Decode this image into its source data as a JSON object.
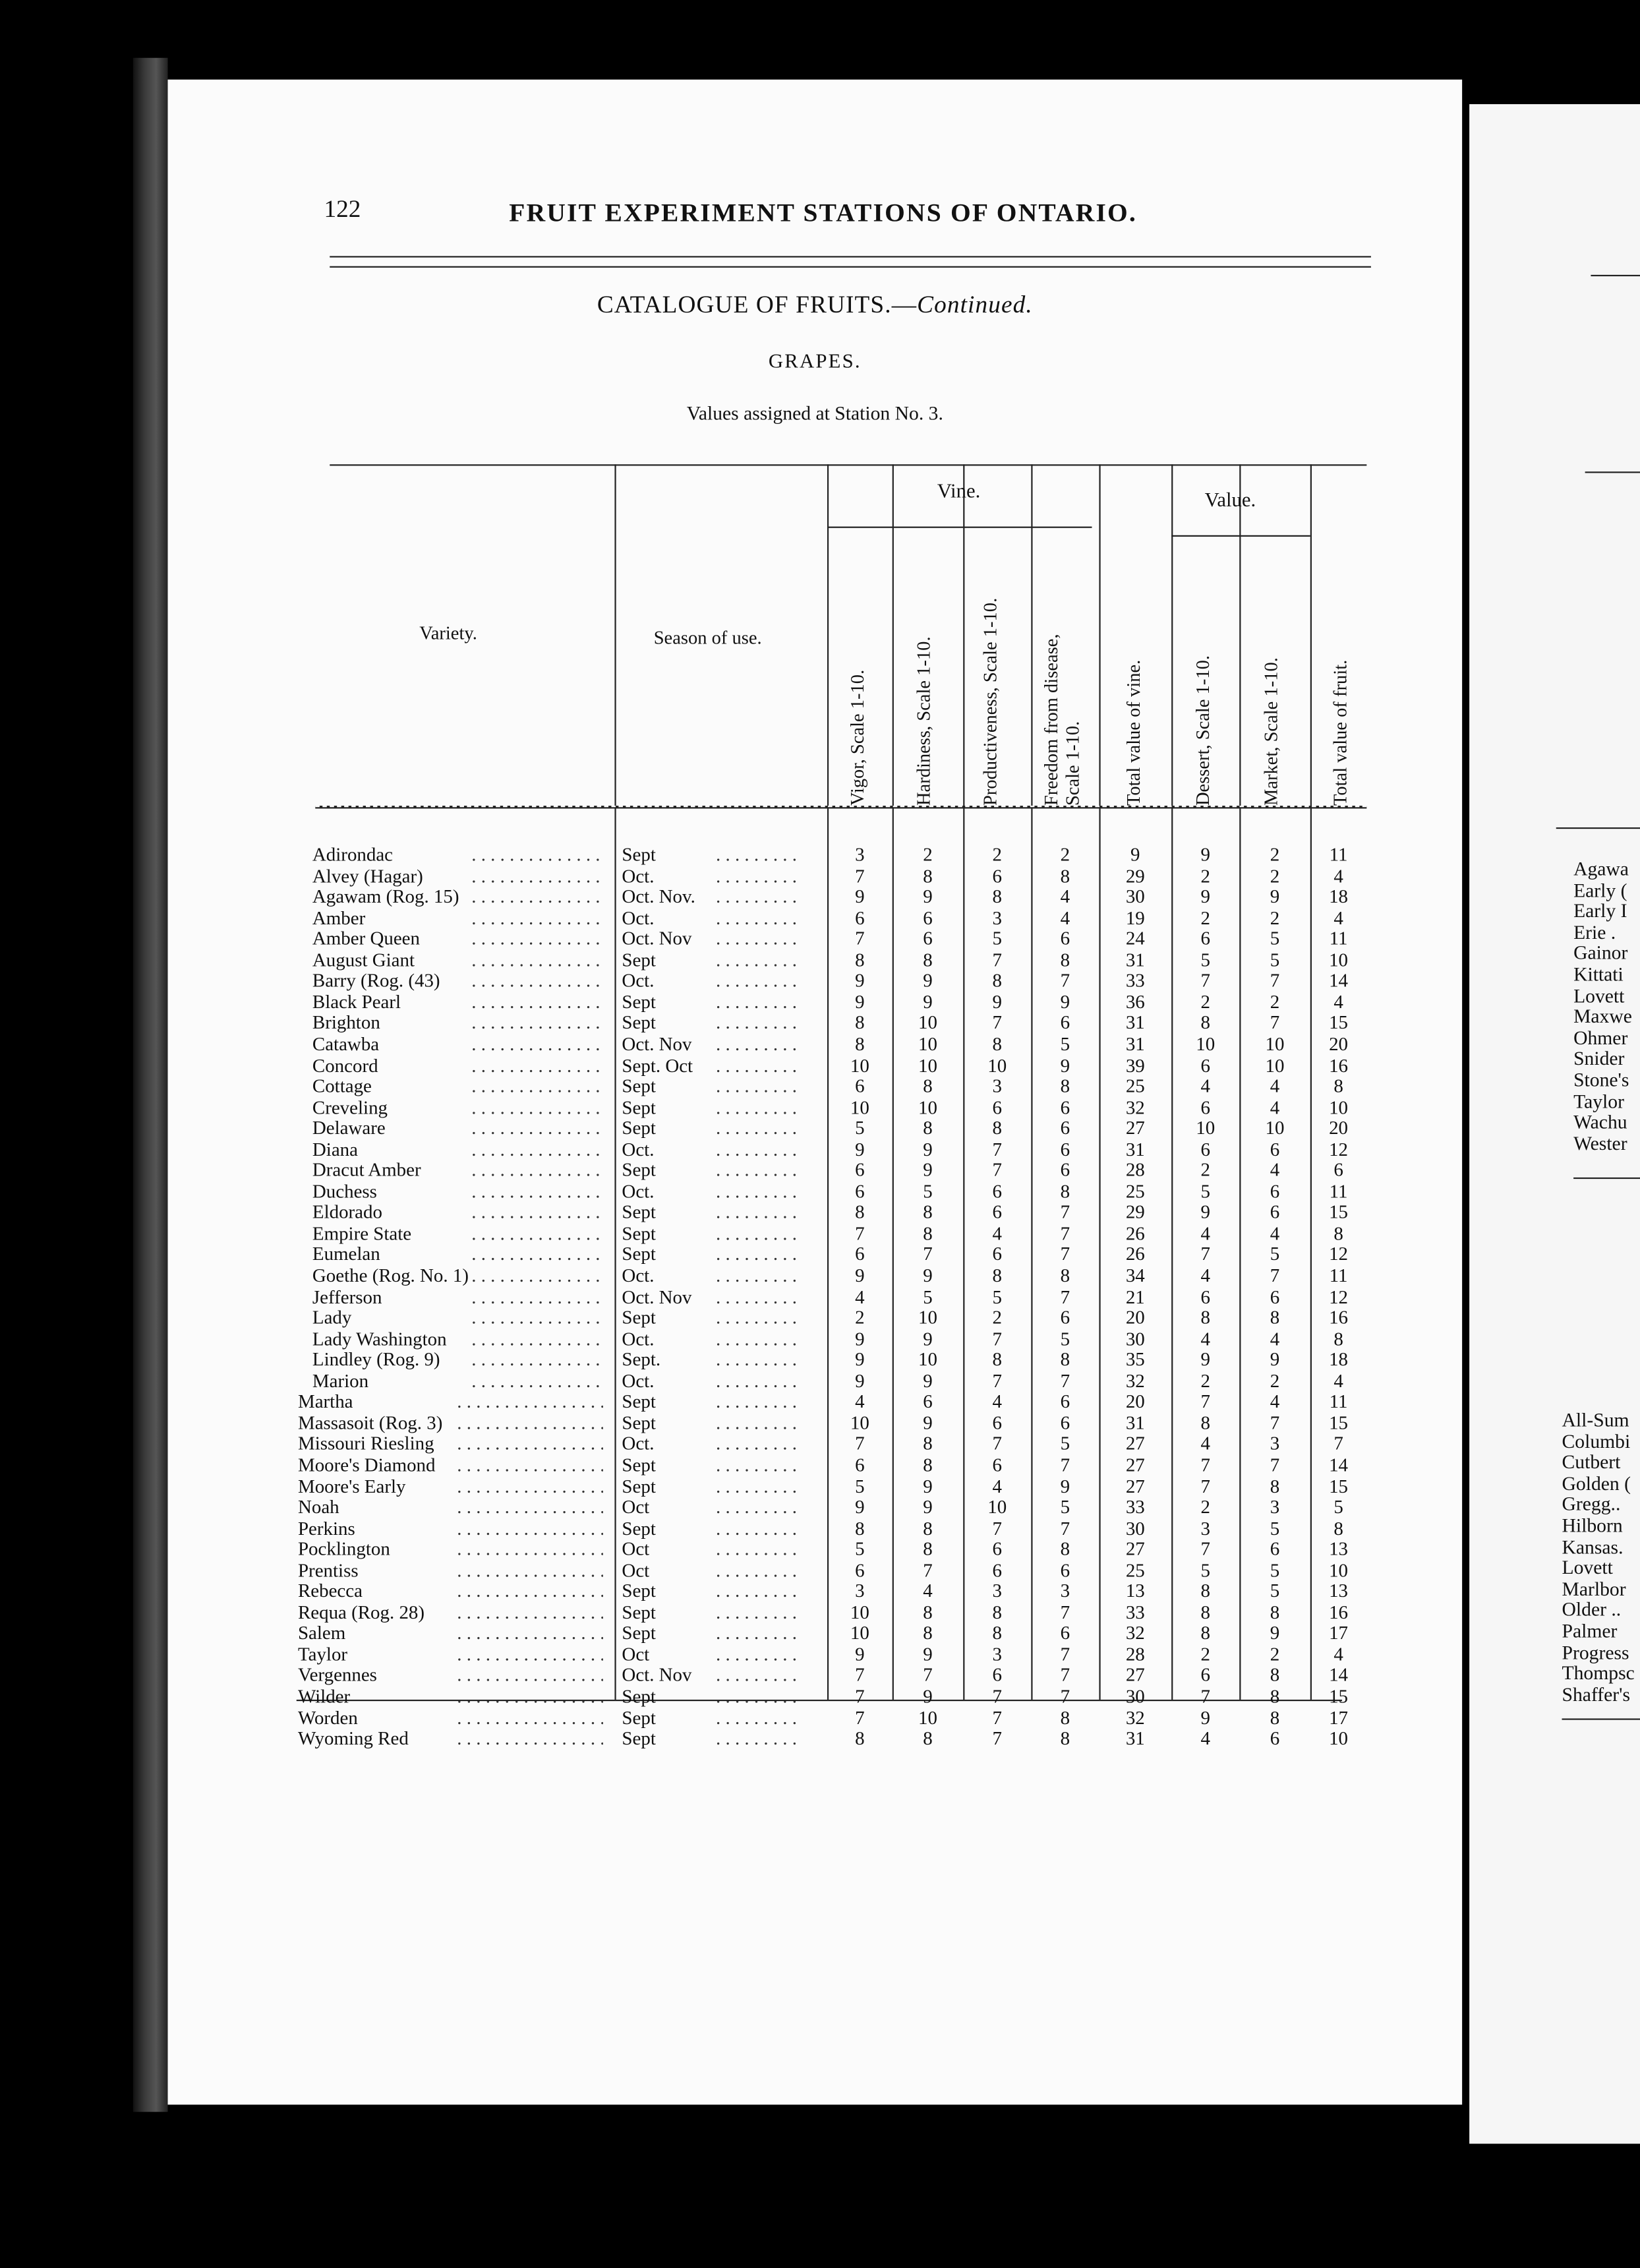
{
  "page_number": "122",
  "running_title": "FRUIT EXPERIMENT STATIONS OF ONTARIO.",
  "catalogue_title": "CATALOGUE OF FRUITS.—",
  "catalogue_continued": "Continued.",
  "section": "GRAPES.",
  "subtitle": "Values assigned at Station No. 3.",
  "table": {
    "group_headers": {
      "vine": "Vine.",
      "value": "Value."
    },
    "columns": [
      "Variety.",
      "Season of use.",
      "Vigor, Scale 1-10.",
      "Hardiness, Scale 1-10.",
      "Productiveness, Scale 1-10.",
      "Freedom from disease,",
      "Scale 1-10.",
      "Total value of vine.",
      "Dessert, Scale 1-10.",
      "Market, Scale 1-10.",
      "Total value of fruit."
    ],
    "rows": [
      [
        "Adirondac",
        "Sept",
        "3",
        "2",
        "2",
        "2",
        "9",
        "9",
        "2",
        "11"
      ],
      [
        "Alvey (Hagar)",
        "Oct.",
        "7",
        "8",
        "6",
        "8",
        "29",
        "2",
        "2",
        "4"
      ],
      [
        "Agawam (Rog. 15)",
        "Oct. Nov.",
        "9",
        "9",
        "8",
        "4",
        "30",
        "9",
        "9",
        "18"
      ],
      [
        "Amber",
        "Oct.",
        "6",
        "6",
        "3",
        "4",
        "19",
        "2",
        "2",
        "4"
      ],
      [
        "Amber Queen",
        "Oct. Nov",
        "7",
        "6",
        "5",
        "6",
        "24",
        "6",
        "5",
        "11"
      ],
      [
        "August Giant",
        "Sept",
        "8",
        "8",
        "7",
        "8",
        "31",
        "5",
        "5",
        "10"
      ],
      [
        "Barry (Rog. (43)",
        "Oct.",
        "9",
        "9",
        "8",
        "7",
        "33",
        "7",
        "7",
        "14"
      ],
      [
        "Black Pearl",
        "Sept",
        "9",
        "9",
        "9",
        "9",
        "36",
        "2",
        "2",
        "4"
      ],
      [
        "Brighton",
        "Sept",
        "8",
        "10",
        "7",
        "6",
        "31",
        "8",
        "7",
        "15"
      ],
      [
        "Catawba",
        "Oct. Nov",
        "8",
        "10",
        "8",
        "5",
        "31",
        "10",
        "10",
        "20"
      ],
      [
        "Concord",
        "Sept. Oct",
        "10",
        "10",
        "10",
        "9",
        "39",
        "6",
        "10",
        "16"
      ],
      [
        "Cottage",
        "Sept",
        "6",
        "8",
        "3",
        "8",
        "25",
        "4",
        "4",
        "8"
      ],
      [
        "Creveling",
        "Sept",
        "10",
        "10",
        "6",
        "6",
        "32",
        "6",
        "4",
        "10"
      ],
      [
        "Delaware",
        "Sept",
        "5",
        "8",
        "8",
        "6",
        "27",
        "10",
        "10",
        "20"
      ],
      [
        "Diana",
        "Oct.",
        "9",
        "9",
        "7",
        "6",
        "31",
        "6",
        "6",
        "12"
      ],
      [
        "Dracut Amber",
        "Sept",
        "6",
        "9",
        "7",
        "6",
        "28",
        "2",
        "4",
        "6"
      ],
      [
        "Duchess",
        "Oct.",
        "6",
        "5",
        "6",
        "8",
        "25",
        "5",
        "6",
        "11"
      ],
      [
        "Eldorado",
        "Sept",
        "8",
        "8",
        "6",
        "7",
        "29",
        "9",
        "6",
        "15"
      ],
      [
        "Empire State",
        "Sept",
        "7",
        "8",
        "4",
        "7",
        "26",
        "4",
        "4",
        "8"
      ],
      [
        "Eumelan",
        "Sept",
        "6",
        "7",
        "6",
        "7",
        "26",
        "7",
        "5",
        "12"
      ],
      [
        "Goethe (Rog. No. 1)",
        "Oct.",
        "9",
        "9",
        "8",
        "8",
        "34",
        "4",
        "7",
        "11"
      ],
      [
        "Jefferson",
        "Oct. Nov",
        "4",
        "5",
        "5",
        "7",
        "21",
        "6",
        "6",
        "12"
      ],
      [
        "Lady",
        "Sept",
        "2",
        "10",
        "2",
        "6",
        "20",
        "8",
        "8",
        "16"
      ],
      [
        "Lady Washington",
        "Oct.",
        "9",
        "9",
        "7",
        "5",
        "30",
        "4",
        "4",
        "8"
      ],
      [
        "Lindley (Rog. 9)",
        "Sept.",
        "9",
        "10",
        "8",
        "8",
        "35",
        "9",
        "9",
        "18"
      ],
      [
        "Marion",
        "Oct.",
        "9",
        "9",
        "7",
        "7",
        "32",
        "2",
        "2",
        "4"
      ],
      [
        "Martha",
        "Sept",
        "4",
        "6",
        "4",
        "6",
        "20",
        "7",
        "4",
        "11"
      ],
      [
        "Massasoit (Rog. 3)",
        "Sept",
        "10",
        "9",
        "6",
        "6",
        "31",
        "8",
        "7",
        "15"
      ],
      [
        "Missouri Riesling",
        "Oct.",
        "7",
        "8",
        "7",
        "5",
        "27",
        "4",
        "3",
        "7"
      ],
      [
        "Moore's Diamond",
        "Sept",
        "6",
        "8",
        "6",
        "7",
        "27",
        "7",
        "7",
        "14"
      ],
      [
        "Moore's Early",
        "Sept",
        "5",
        "9",
        "4",
        "9",
        "27",
        "7",
        "8",
        "15"
      ],
      [
        "Noah",
        "Oct",
        "9",
        "9",
        "10",
        "5",
        "33",
        "2",
        "3",
        "5"
      ],
      [
        "Perkins",
        "Sept",
        "8",
        "8",
        "7",
        "7",
        "30",
        "3",
        "5",
        "8"
      ],
      [
        "Pocklington",
        "Oct",
        "5",
        "8",
        "6",
        "8",
        "27",
        "7",
        "6",
        "13"
      ],
      [
        "Prentiss",
        "Oct",
        "6",
        "7",
        "6",
        "6",
        "25",
        "5",
        "5",
        "10"
      ],
      [
        "Rebecca",
        "Sept",
        "3",
        "4",
        "3",
        "3",
        "13",
        "8",
        "5",
        "13"
      ],
      [
        "Requa (Rog. 28)",
        "Sept",
        "10",
        "8",
        "8",
        "7",
        "33",
        "8",
        "8",
        "16"
      ],
      [
        "Salem",
        "Sept",
        "10",
        "8",
        "8",
        "6",
        "32",
        "8",
        "9",
        "17"
      ],
      [
        "Taylor",
        "Oct",
        "9",
        "9",
        "3",
        "7",
        "28",
        "2",
        "2",
        "4"
      ],
      [
        "Vergennes",
        "Oct. Nov",
        "7",
        "7",
        "6",
        "7",
        "27",
        "6",
        "8",
        "14"
      ],
      [
        "Wilder",
        "Sept",
        "7",
        "9",
        "7",
        "7",
        "30",
        "7",
        "8",
        "15"
      ],
      [
        "Worden",
        "Sept",
        "7",
        "10",
        "7",
        "8",
        "32",
        "9",
        "8",
        "17"
      ],
      [
        "Wyoming Red",
        "Sept",
        "8",
        "8",
        "7",
        "8",
        "31",
        "4",
        "6",
        "10"
      ]
    ]
  },
  "facing_page": {
    "list1": [
      "Agawa",
      "Early (",
      "Early I",
      "Erie .",
      "Gainor",
      "Kittati",
      "Lovett",
      "Maxwe",
      "Ohmer",
      "Snider",
      "Stone's",
      "Taylor",
      "Wachu",
      "Wester"
    ],
    "list2": [
      "All-Sum",
      "Columbi",
      "Cutbert",
      "Golden (",
      "Gregg..",
      "Hilborn",
      "Kansas.",
      "Lovett",
      "Marlbor",
      "Older ..",
      "Palmer",
      "Progress",
      "Thompsc",
      "Shaffer's"
    ]
  }
}
